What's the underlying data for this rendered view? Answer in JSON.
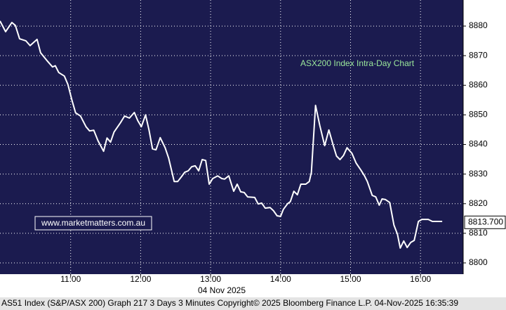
{
  "chart_data": {
    "type": "line",
    "annotation": "ASX200 Index Intra-Day Chart",
    "watermark": "www.marketmatters.com.au",
    "xlabel": "04 Nov 2025",
    "color": "#ffffff",
    "background": "#1b1b4f",
    "grid": true,
    "x": [
      9.99,
      10.07,
      10.16,
      10.21,
      10.27,
      10.36,
      10.42,
      10.52,
      10.57,
      10.67,
      10.74,
      10.78,
      10.83,
      10.91,
      10.96,
      11.02,
      11.07,
      11.14,
      11.22,
      11.27,
      11.33,
      11.39,
      11.47,
      11.52,
      11.57,
      11.62,
      11.71,
      11.77,
      11.84,
      11.91,
      11.96,
      12.01,
      12.07,
      12.12,
      12.17,
      12.22,
      12.28,
      12.35,
      12.4,
      12.48,
      12.53,
      12.58,
      12.63,
      12.68,
      12.73,
      12.78,
      12.83,
      12.88,
      12.93,
      12.98,
      13.03,
      13.1,
      13.16,
      13.2,
      13.26,
      13.33,
      13.38,
      13.43,
      13.48,
      13.53,
      13.63,
      13.68,
      13.73,
      13.78,
      13.85,
      13.9,
      13.95,
      14.0,
      14.04,
      14.1,
      14.14,
      14.19,
      14.24,
      14.29,
      14.36,
      14.41,
      14.44,
      14.5,
      14.56,
      14.63,
      14.69,
      14.75,
      14.8,
      14.85,
      14.9,
      14.95,
      15.02,
      15.08,
      15.15,
      15.2,
      15.24,
      15.31,
      15.36,
      15.41,
      15.45,
      15.5,
      15.56,
      15.62,
      15.67,
      15.71,
      15.76,
      15.81,
      15.86,
      15.91,
      15.97,
      16.02,
      16.11,
      16.17,
      16.31
    ],
    "values": [
      8881.7,
      8878.1,
      8881.2,
      8880.2,
      8875.7,
      8875.0,
      8873.4,
      8875.5,
      8871.0,
      8868.1,
      8866.2,
      8866.6,
      8864.3,
      8863.1,
      8860.3,
      8854.8,
      8850.7,
      8849.6,
      8846.0,
      8844.6,
      8844.8,
      8841.3,
      8837.7,
      8842.2,
      8840.8,
      8844.2,
      8847.3,
      8849.6,
      8848.9,
      8850.8,
      8848.0,
      8846.0,
      8850.0,
      8844.8,
      8838.5,
      8838.2,
      8842.3,
      8838.9,
      8835.4,
      8827.5,
      8827.5,
      8829.0,
      8830.6,
      8831.1,
      8832.5,
      8832.8,
      8831.1,
      8834.9,
      8834.6,
      8826.6,
      8828.5,
      8829.4,
      8828.5,
      8828.3,
      8829.4,
      8824.2,
      8826.6,
      8824.0,
      8823.8,
      8822.3,
      8822.1,
      8819.9,
      8820.2,
      8818.5,
      8818.7,
      8817.6,
      8815.9,
      8815.7,
      8818.1,
      8820.0,
      8820.7,
      8824.2,
      8823.0,
      8826.6,
      8826.6,
      8827.5,
      8830.6,
      8853.2,
      8846.5,
      8839.6,
      8844.9,
      8839.9,
      8836.1,
      8834.9,
      8836.3,
      8838.9,
      8837.0,
      8833.7,
      8831.3,
      8829.4,
      8827.5,
      8822.8,
      8822.3,
      8819.5,
      8821.6,
      8821.4,
      8820.4,
      8812.8,
      8809.7,
      8805.0,
      8807.4,
      8805.2,
      8806.9,
      8807.6,
      8814.0,
      8814.7,
      8814.7,
      8814.0,
      8814.0
    ],
    "last_price": {
      "value": 8813.7,
      "label": "8813.700"
    },
    "xlim": [
      9.99,
      16.61
    ],
    "xticks": [
      {
        "value": 11,
        "label": "11:00"
      },
      {
        "value": 12,
        "label": "12:00"
      },
      {
        "value": 13,
        "label": "13:00"
      },
      {
        "value": 14,
        "label": "14:00"
      },
      {
        "value": 15,
        "label": "15:00"
      },
      {
        "value": 16,
        "label": "16:00"
      }
    ],
    "ylim": [
      8796.2,
      8888.8
    ],
    "yticks": [
      8800,
      8810,
      8820,
      8830,
      8840,
      8850,
      8860,
      8870,
      8880
    ]
  },
  "footer": "AS51 Index (S&P/ASX 200) Graph 217 3 Days 3 Minutes Copyright© 2025 Bloomberg Finance L.P. 04-Nov-2025 16:35:39"
}
